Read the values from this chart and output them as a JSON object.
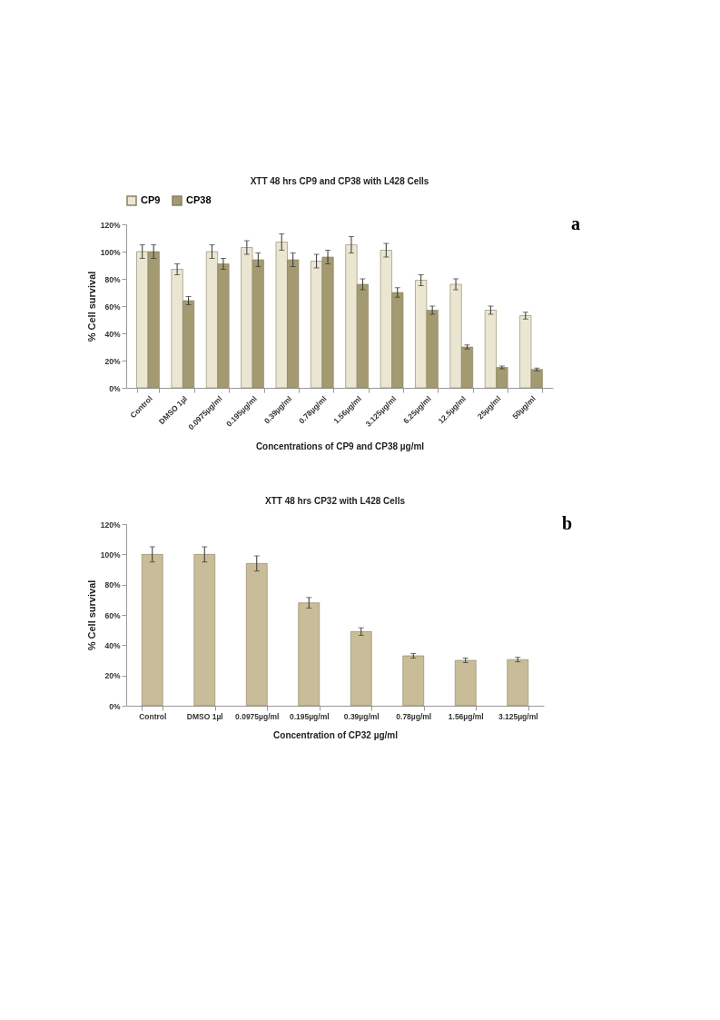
{
  "chart_data": [
    {
      "type": "bar",
      "title": "XTT 48 hrs CP9 and CP38 with L428 Cells",
      "xlabel": "Concentrations of CP9 and CP38 µg/ml",
      "ylabel": "% Cell survival",
      "categories": [
        "Control",
        "DMSO 1µl",
        "0.0975µg/ml",
        "0.195µg/ml",
        "0.39µg/ml",
        "0.78µg/ml",
        "1.56µg/ml",
        "3.125µg/ml",
        "6.25µg/ml",
        "12.5µg/ml",
        "25µg/ml",
        "50µg/ml"
      ],
      "series": [
        {
          "name": "CP9",
          "color": "#ebe6d2",
          "values": [
            100,
            87,
            100,
            103,
            107,
            93,
            105,
            101,
            79,
            76,
            57,
            53
          ],
          "errors": [
            5,
            4,
            5,
            5,
            6,
            5,
            6,
            5,
            4,
            4,
            3,
            2.5
          ]
        },
        {
          "name": "CP38",
          "color": "#a39a72",
          "values": [
            100,
            64,
            91,
            94,
            94,
            96,
            76,
            70,
            57,
            30,
            15,
            13.5
          ],
          "errors": [
            5,
            3,
            4,
            5,
            5,
            5,
            4,
            3.5,
            3,
            1.5,
            1,
            1
          ]
        }
      ],
      "ylim": [
        0,
        120
      ],
      "yticks": [
        {
          "value": 0,
          "label": "0%"
        },
        {
          "value": 20,
          "label": "20%"
        },
        {
          "value": 40,
          "label": "40%"
        },
        {
          "value": 60,
          "label": "60%"
        },
        {
          "value": 80,
          "label": "80%"
        },
        {
          "value": 100,
          "label": "100%"
        },
        {
          "value": 120,
          "label": "120%"
        }
      ],
      "legend": "top",
      "annotations": [
        "a"
      ]
    },
    {
      "type": "bar",
      "title": "XTT 48 hrs CP32 with L428 Cells",
      "xlabel": "Concentration  of CP32 µg/ml",
      "ylabel": "% Cell survival",
      "categories": [
        "Control",
        "DMSO 1µl",
        "0.0975µg/ml",
        "0.195µg/ml",
        "0.39µg/ml",
        "0.78µg/ml",
        "1.56µg/ml",
        "3.125µg/ml"
      ],
      "series": [
        {
          "color": "#c8bd98",
          "values": [
            100,
            100,
            94,
            68,
            49,
            33,
            30,
            30.5
          ],
          "errors": [
            5,
            5,
            5,
            3.5,
            2.5,
            1.5,
            1.5,
            1.5
          ]
        }
      ],
      "ylim": [
        0,
        120
      ],
      "yticks": [
        {
          "value": 0,
          "label": "0%"
        },
        {
          "value": 20,
          "label": "20%"
        },
        {
          "value": 40,
          "label": "40%"
        },
        {
          "value": 60,
          "label": "60%"
        },
        {
          "value": 80,
          "label": "80%"
        },
        {
          "value": 100,
          "label": "100%"
        },
        {
          "value": 120,
          "label": "120%"
        }
      ],
      "annotations": [
        "b"
      ]
    }
  ]
}
